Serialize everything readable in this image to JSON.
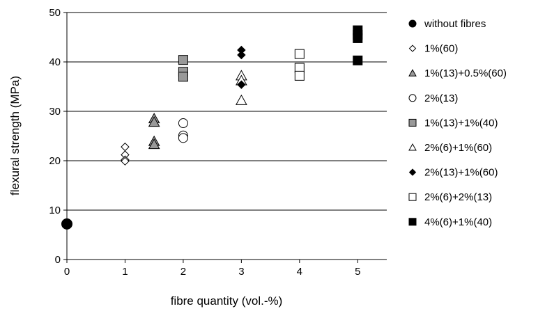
{
  "chart_data": {
    "type": "scatter",
    "xlabel": "fibre quantity (vol.-%)",
    "ylabel": "flexural strength (MPa)",
    "xlim": [
      0,
      5.5
    ],
    "ylim": [
      0,
      50
    ],
    "x_ticks": [
      "0",
      "1",
      "2",
      "3",
      "4",
      "5"
    ],
    "y_ticks": [
      "0",
      "10",
      "20",
      "30",
      "40",
      "50"
    ],
    "grid": "horizontal",
    "legend_position": "right",
    "series": [
      {
        "name": "without fibres",
        "marker": "circle",
        "fill": "#000000",
        "points": [
          [
            0,
            7.2
          ]
        ]
      },
      {
        "name": "1%(60)",
        "marker": "diamond",
        "fill": "#ffffff",
        "points": [
          [
            1,
            22.8
          ],
          [
            1,
            21.2
          ],
          [
            1,
            20.2
          ],
          [
            1,
            19.9
          ]
        ]
      },
      {
        "name": "1%(13)+0.5%(60)",
        "marker": "triangle",
        "fill": "#999999",
        "points": [
          [
            1.5,
            28.5
          ],
          [
            1.5,
            27.8
          ],
          [
            1.5,
            23.9
          ],
          [
            1.5,
            23.3
          ]
        ]
      },
      {
        "name": "2%(13)",
        "marker": "circle",
        "fill": "#ffffff",
        "points": [
          [
            2,
            27.6
          ],
          [
            2,
            25.1
          ],
          [
            2,
            24.6
          ]
        ]
      },
      {
        "name": "1%(13)+1%(40)",
        "marker": "square",
        "fill": "#999999",
        "points": [
          [
            2,
            40.4
          ],
          [
            2,
            38.0
          ],
          [
            2,
            37.0
          ]
        ]
      },
      {
        "name": "2%(6)+1%(60)",
        "marker": "triangle",
        "fill": "#ffffff",
        "points": [
          [
            3,
            37.2
          ],
          [
            3,
            36.2
          ],
          [
            3,
            32.2
          ]
        ]
      },
      {
        "name": "2%(13)+1%(60)",
        "marker": "diamond",
        "fill": "#000000",
        "points": [
          [
            3,
            42.4
          ],
          [
            3,
            41.4
          ],
          [
            3,
            35.4
          ]
        ]
      },
      {
        "name": "2%(6)+2%(13)",
        "marker": "square",
        "fill": "#ffffff",
        "points": [
          [
            4,
            41.6
          ],
          [
            4,
            38.8
          ],
          [
            4,
            37.2
          ]
        ]
      },
      {
        "name": "4%(6)+1%(40)",
        "marker": "square",
        "fill": "#000000",
        "points": [
          [
            5,
            46.4
          ],
          [
            5,
            45.5
          ],
          [
            5,
            44.8
          ],
          [
            5,
            40.3
          ]
        ]
      }
    ]
  }
}
